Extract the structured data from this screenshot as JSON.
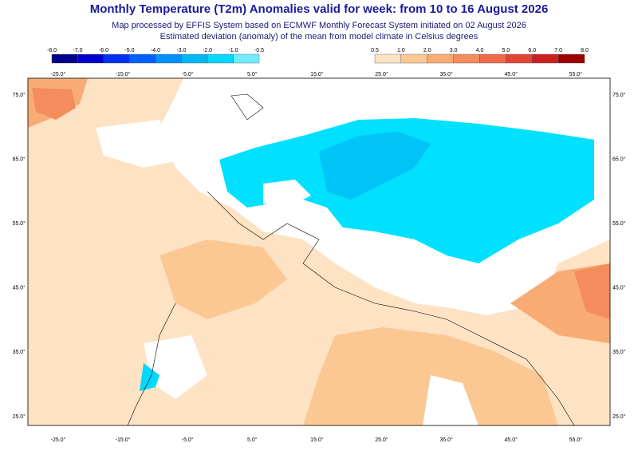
{
  "header": {
    "title": "Monthly Temperature (T2m) Anomalies valid for week: from 10 to 16 August 2026",
    "subtitle": [
      "Map processed by EFFIS System based on ECMWF Monthly Forecast System initiated on 02 August 2026",
      "Estimated deviation (anomaly) of the mean from model climate in Celsius degrees"
    ]
  },
  "legend": {
    "negative": {
      "labels": [
        "-8.0",
        "-7.0",
        "-6.0",
        "-5.0",
        "-4.0",
        "-3.0",
        "-2.0",
        "-1.0",
        "-0.5"
      ],
      "colors": [
        "#00008b",
        "#0000cd",
        "#0030f0",
        "#0060ff",
        "#0090ff",
        "#00b8f8",
        "#00d8ff",
        "#70ecff"
      ]
    },
    "positive": {
      "labels": [
        "0.5",
        "1.0",
        "2.0",
        "3.0",
        "4.0",
        "5.0",
        "6.0",
        "7.0",
        "8.0"
      ],
      "colors": [
        "#fde2c4",
        "#fbc894",
        "#f8ac74",
        "#f48c5c",
        "#ee6a48",
        "#e44434",
        "#cc2020",
        "#9c0000"
      ]
    }
  },
  "axes": {
    "top_lon": [
      "-25.0°",
      "-15.0°",
      "-5.0°",
      "5.0°",
      "15.0°",
      "25.0°",
      "35.0°",
      "45.0°",
      "55.0°"
    ],
    "bottom_lon": [
      "-25.0°",
      "-15.0°",
      "-5.0°",
      "5.0°",
      "15.0°",
      "25.0°",
      "35.0°",
      "45.0°",
      "55.0°"
    ],
    "left_lat": [
      "75.0°",
      "65.0°",
      "55.0°",
      "45.0°",
      "35.0°",
      "25.0°"
    ],
    "right_lat": [
      "75.0°",
      "65.0°",
      "55.0°",
      "45.0°",
      "35.0°",
      "25.0°"
    ]
  }
}
